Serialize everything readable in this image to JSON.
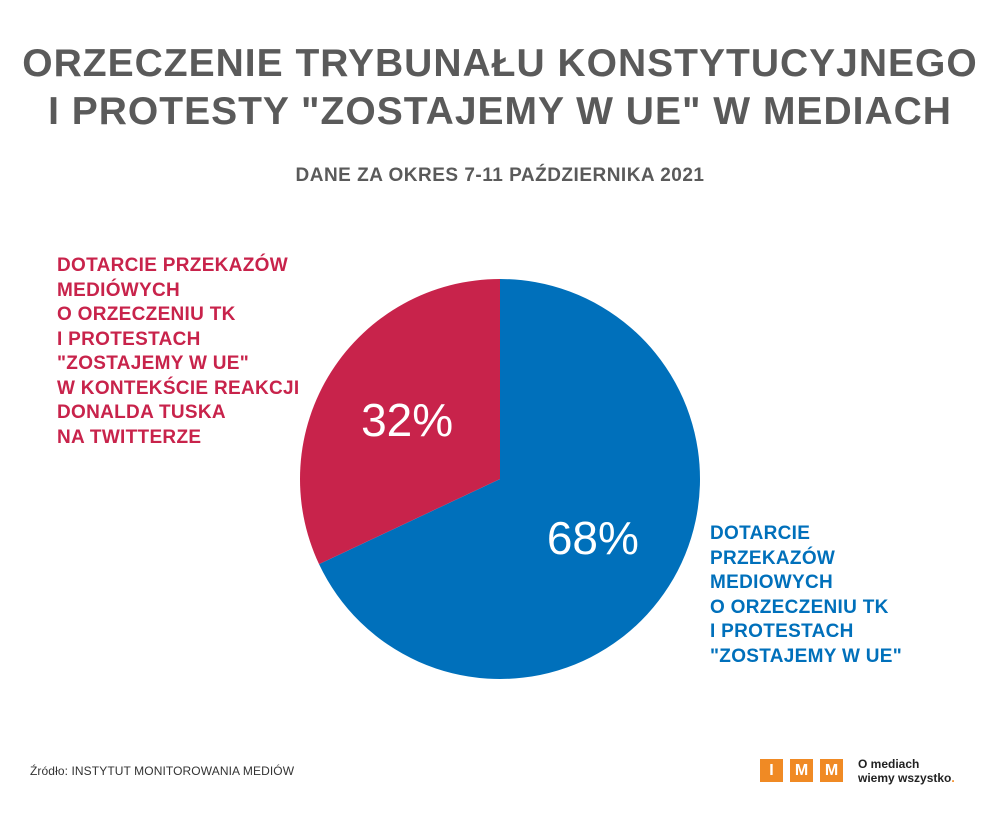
{
  "header": {
    "title_lines": [
      "ORZECZENIE TRYBUNAŁU KONSTYTUCYJNEGO",
      "I PROTESTY \"ZOSTAJEMY W UE\" W MEDIACH"
    ],
    "subtitle": "DANE ZA OKRES 7-11 PAŹDZIERNIKA 2021"
  },
  "chart_data": {
    "type": "pie",
    "title": "ORZECZENIE TRYBUNAŁU KONSTYTUCYJNEGO I PROTESTY \"ZOSTAJEMY W UE\" W MEDIACH",
    "subtitle": "DANE ZA OKRES 7-11 PAŹDZIERNIKA 2021",
    "slices": [
      {
        "value": 68,
        "value_label": "68%",
        "color": "#0070bb",
        "label_lines": [
          "DOTARCIE",
          "PRZEKAZÓW",
          "MEDIOWYCH",
          "O ORZECZENIU TK",
          "I PROTESTACH",
          "\"ZOSTAJEMY W UE\""
        ]
      },
      {
        "value": 32,
        "value_label": "32%",
        "color": "#c8234b",
        "label_lines": [
          "DOTARCIE PRZEKAZÓW",
          "MEDIÓWYCH",
          "O ORZECZENIU TK",
          "I PROTESTACH",
          "\"ZOSTAJEMY W UE\"",
          "W KONTEKŚCIE REAKCJI",
          "DONALDA TUSKA",
          "NA TWITTERZE"
        ]
      }
    ]
  },
  "footer": {
    "source": "Źródło: INSTYTUT MONITOROWANIA MEDIÓW",
    "logo_letters": [
      "I",
      "M",
      "M"
    ],
    "logo_color": "#f08a24",
    "tagline_line1": "O mediach",
    "tagline_line2": "wiemy wszystko",
    "tagline_dot": "."
  }
}
